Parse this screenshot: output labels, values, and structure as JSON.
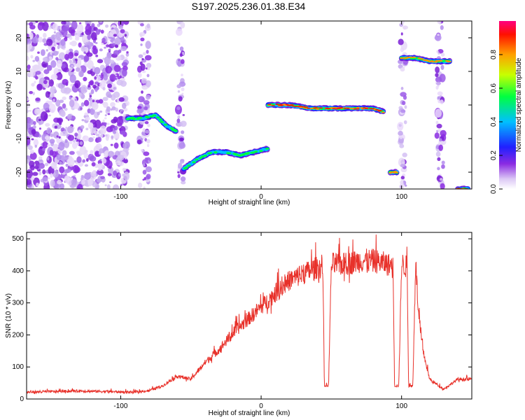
{
  "page": {
    "title": "S197.2025.236.01.38.E34"
  },
  "chart_data": [
    {
      "type": "heatmap",
      "xlabel": "Height of straight line (km)",
      "ylabel": "Frequency (Hz)",
      "xlim": [
        -167,
        150
      ],
      "ylim": [
        -25,
        25
      ],
      "xticks": [
        -100,
        0,
        100
      ],
      "yticks": [
        -20,
        -10,
        0,
        10,
        20
      ],
      "colorbar": {
        "label": "Normalized spectral amplitude",
        "range": [
          0,
          1
        ],
        "ticks": [
          "0.0",
          "0.2",
          "0.4",
          "0.6",
          "0.8"
        ],
        "tick_values": [
          0,
          0.2,
          0.4,
          0.6,
          0.8
        ]
      },
      "colors": {
        "low": "#8a2be2",
        "mid": "#00ff00",
        "high": "#ff0000"
      },
      "traces": [
        {
          "x": [
            -95,
            -85,
            -75,
            -68,
            -60
          ],
          "y": [
            -4,
            -4,
            -3,
            -6,
            -8
          ],
          "peak": 0.6
        },
        {
          "x": [
            -55,
            -45,
            -35,
            -25,
            -15,
            -5,
            5
          ],
          "y": [
            -19,
            -16,
            -14,
            -14,
            -15,
            -14,
            -13
          ],
          "peak": 0.7
        },
        {
          "x": [
            5,
            20,
            35,
            50,
            65,
            80,
            87
          ],
          "y": [
            0,
            0,
            -1,
            -1,
            -1,
            -1,
            -2
          ],
          "peak": 1.0
        },
        {
          "x": [
            92,
            97
          ],
          "y": [
            -20,
            -20
          ],
          "peak": 0.9
        },
        {
          "x": [
            100,
            110,
            120,
            128,
            135
          ],
          "y": [
            14,
            14,
            13,
            13,
            13
          ],
          "peak": 0.85
        },
        {
          "x": [
            140,
            148
          ],
          "y": [
            -25,
            -25
          ],
          "peak": 0.95
        }
      ],
      "noise_regions": [
        {
          "x": [
            -167,
            -95
          ],
          "y": [
            -25,
            25
          ]
        },
        {
          "x": [
            -87,
            -80
          ],
          "y": [
            -25,
            25
          ]
        },
        {
          "x": [
            -59,
            -55
          ],
          "y": [
            -25,
            25
          ]
        },
        {
          "x": [
            99,
            103
          ],
          "y": [
            -25,
            25
          ]
        },
        {
          "x": [
            125,
            130
          ],
          "y": [
            -25,
            25
          ]
        }
      ]
    },
    {
      "type": "line",
      "xlabel": "Height of straight line (km)",
      "ylabel": "SNR (10 * v/v)",
      "xlim": [
        -167,
        150
      ],
      "ylim": [
        0,
        520
      ],
      "xticks": [
        -100,
        0,
        100
      ],
      "yticks": [
        0,
        100,
        200,
        300,
        400,
        500
      ],
      "series": [
        {
          "name": "SNR",
          "color": "#e8312a",
          "x": [
            -167,
            -150,
            -130,
            -110,
            -90,
            -80,
            -70,
            -60,
            -50,
            -40,
            -30,
            -20,
            -10,
            0,
            10,
            20,
            30,
            40,
            44,
            45,
            48,
            50,
            60,
            70,
            80,
            90,
            94,
            95,
            98,
            100,
            104,
            105,
            108,
            110,
            112,
            115,
            120,
            130,
            140,
            150
          ],
          "y": [
            20,
            22,
            24,
            22,
            20,
            25,
            40,
            70,
            60,
            110,
            150,
            200,
            240,
            280,
            320,
            360,
            380,
            400,
            400,
            40,
            40,
            410,
            410,
            420,
            420,
            410,
            400,
            40,
            40,
            410,
            400,
            40,
            40,
            420,
            260,
            150,
            60,
            30,
            60,
            60
          ]
        }
      ]
    }
  ]
}
